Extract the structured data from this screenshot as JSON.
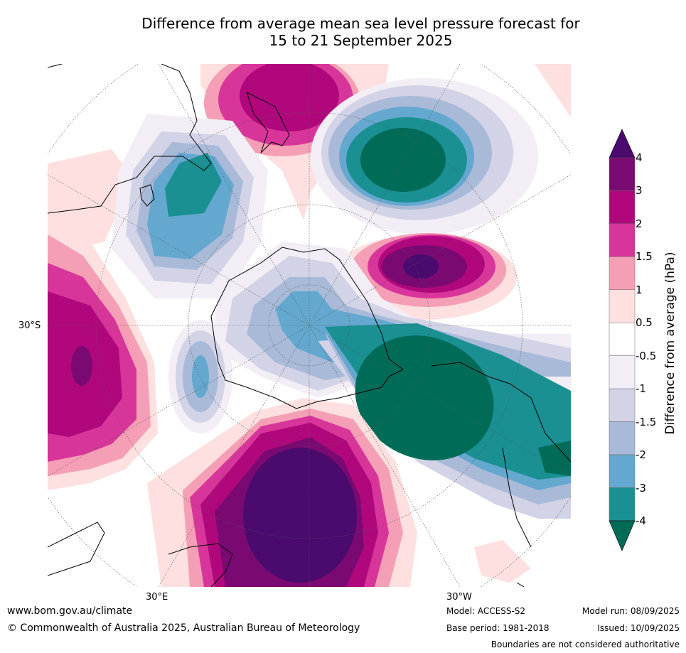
{
  "title_line1": "Difference from average mean sea level pressure forecast for",
  "title_line2": "15 to 21 September 2025",
  "map": {
    "lon_labels": [
      "30°E",
      "30°W"
    ],
    "lat_labels": [
      "30°S"
    ]
  },
  "colorbar": {
    "label": "Difference from average (hPa)",
    "ticks": [
      "4",
      "3",
      "2",
      "1.5",
      "1",
      "0.5",
      "-0.5",
      "-1",
      "-1.5",
      "-2",
      "-3",
      "-4"
    ],
    "colors": {
      "above4": "#4a0a6e",
      "3to4": "#7a0a72",
      "2to3": "#b0087c",
      "1.5to2": "#d8359a",
      "1to1.5": "#f59fb6",
      "0.5to1": "#fde0df",
      "neutral": "#ffffff",
      "m1tom05": "#f3eef5",
      "m15tom1": "#d2d3e6",
      "m2tom15": "#a9bad8",
      "m3tom2": "#64a8cf",
      "m4tom3": "#1a9093",
      "below4": "#006c58"
    }
  },
  "footer": {
    "url": "www.bom.gov.au/climate",
    "copyright": "© Commonwealth of Australia 2025, Australian Bureau of Meteorology",
    "model": "Model: ACCESS-S2",
    "base_period": "Base period: 1981-2018",
    "model_run": "Model run: 08/09/2025",
    "issued": "Issued: 10/09/2025",
    "boundaries": "Boundaries are not considered authoritative"
  }
}
